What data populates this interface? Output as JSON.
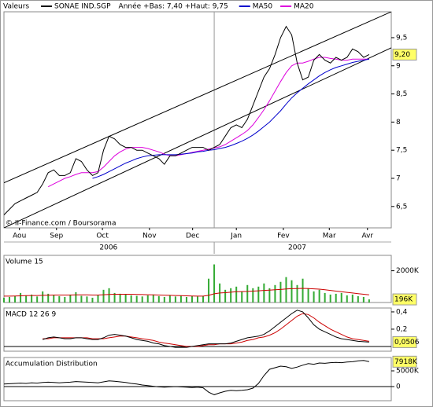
{
  "chart_data": [
    {
      "type": "line",
      "title": "Valeurs",
      "subtitle": "Année +Bas: 7,40 +Haut: 9,75",
      "source": "© II-Finance.com / Boursorama",
      "series": [
        {
          "name": "SONAE IND.SGP",
          "color": "#000000",
          "values": [
            6.35,
            6.45,
            6.55,
            6.6,
            6.65,
            6.7,
            6.75,
            6.9,
            7.1,
            7.15,
            7.05,
            7.05,
            7.1,
            7.35,
            7.3,
            7.15,
            7.05,
            7.1,
            7.5,
            7.75,
            7.7,
            7.6,
            7.55,
            7.55,
            7.5,
            7.5,
            7.45,
            7.4,
            7.35,
            7.25,
            7.4,
            7.4,
            7.45,
            7.5,
            7.55,
            7.55,
            7.55,
            7.5,
            7.55,
            7.6,
            7.75,
            7.9,
            7.95,
            7.9,
            8.05,
            8.3,
            8.55,
            8.8,
            8.95,
            9.2,
            9.5,
            9.7,
            9.55,
            9.05,
            8.75,
            8.8,
            9.1,
            9.2,
            9.1,
            9.05,
            9.15,
            9.1,
            9.15,
            9.3,
            9.25,
            9.15,
            9.2
          ]
        },
        {
          "name": "MA50",
          "color": "#0000cc",
          "values": [
            null,
            null,
            null,
            null,
            null,
            null,
            null,
            null,
            null,
            null,
            null,
            null,
            null,
            null,
            null,
            null,
            7.0,
            7.03,
            7.07,
            7.12,
            7.17,
            7.22,
            7.27,
            7.31,
            7.35,
            7.38,
            7.4,
            7.41,
            7.42,
            7.42,
            7.42,
            7.42,
            7.43,
            7.44,
            7.45,
            7.47,
            7.48,
            7.5,
            7.51,
            7.53,
            7.55,
            7.58,
            7.62,
            7.66,
            7.71,
            7.77,
            7.84,
            7.92,
            8.0,
            8.1,
            8.2,
            8.32,
            8.43,
            8.52,
            8.6,
            8.68,
            8.75,
            8.82,
            8.88,
            8.93,
            8.97,
            9.0,
            9.03,
            9.06,
            9.08,
            9.1,
            9.12
          ]
        },
        {
          "name": "MA20",
          "color": "#dd00dd",
          "values": [
            null,
            null,
            null,
            null,
            null,
            null,
            null,
            null,
            6.85,
            6.9,
            6.95,
            7.0,
            7.03,
            7.07,
            7.1,
            7.1,
            7.1,
            7.12,
            7.2,
            7.3,
            7.4,
            7.47,
            7.52,
            7.55,
            7.55,
            7.55,
            7.53,
            7.5,
            7.47,
            7.43,
            7.4,
            7.4,
            7.42,
            7.44,
            7.46,
            7.48,
            7.5,
            7.52,
            7.54,
            7.56,
            7.6,
            7.66,
            7.72,
            7.78,
            7.85,
            7.95,
            8.08,
            8.22,
            8.38,
            8.55,
            8.72,
            8.88,
            9.0,
            9.05,
            9.05,
            9.08,
            9.12,
            9.15,
            9.15,
            9.13,
            9.12,
            9.1,
            9.1,
            9.12,
            9.12,
            9.12,
            9.12
          ]
        }
      ],
      "channels": [
        [
          6.92,
          9.96
        ],
        [
          6.12,
          9.32
        ]
      ],
      "last_value": {
        "value": 9.2,
        "label": "9,20"
      },
      "xlim": [
        0,
        70
      ],
      "xticks": [
        {
          "value": 2.8,
          "label": "Aou"
        },
        {
          "value": 9.5,
          "label": "Sep"
        },
        {
          "value": 17.8,
          "label": "Oct"
        },
        {
          "value": 26.3,
          "label": "Nov"
        },
        {
          "value": 34.1,
          "label": "Dec"
        },
        {
          "value": 42,
          "label": "Jan"
        },
        {
          "value": 50.5,
          "label": "Fev"
        },
        {
          "value": 58.8,
          "label": "Mar"
        },
        {
          "value": 65.7,
          "label": "Avr"
        }
      ],
      "year_labels": [
        {
          "value": 18.9,
          "label": "2006"
        },
        {
          "value": 53,
          "label": "2007"
        }
      ],
      "year_separator": 38,
      "ylim": [
        6.12,
        9.96
      ],
      "yticks": [
        {
          "value": 6.5,
          "label": "6,5"
        },
        7,
        {
          "value": 7.5,
          "label": "7,5"
        },
        8,
        {
          "value": 8.5,
          "label": "8,5"
        },
        9,
        {
          "value": 9.5,
          "label": "9,5"
        }
      ]
    },
    {
      "type": "bar",
      "title": "Volume 15",
      "color": "#33aa33",
      "values": [
        300000,
        350000,
        400000,
        600000,
        450000,
        500000,
        380000,
        700000,
        550000,
        450000,
        400000,
        350000,
        500000,
        650000,
        420000,
        380000,
        300000,
        450000,
        800000,
        900000,
        600000,
        550000,
        500000,
        450000,
        420000,
        380000,
        450000,
        500000,
        400000,
        350000,
        450000,
        380000,
        420000,
        350000,
        400000,
        380000,
        420000,
        1500000,
        2400000,
        1200000,
        800000,
        900000,
        1000000,
        700000,
        1100000,
        900000,
        1000000,
        1200000,
        900000,
        1100000,
        1300000,
        1600000,
        1400000,
        1100000,
        1500000,
        900000,
        700000,
        800000,
        600000,
        500000,
        550000,
        600000,
        450000,
        500000,
        400000,
        350000,
        196000
      ],
      "ma_color": "#cc0000",
      "ma_values": [
        400000,
        400000,
        410000,
        420000,
        430000,
        440000,
        440000,
        450000,
        460000,
        470000,
        470000,
        470000,
        470000,
        480000,
        480000,
        480000,
        470000,
        470000,
        490000,
        510000,
        520000,
        520000,
        520000,
        520000,
        510000,
        500000,
        490000,
        480000,
        470000,
        460000,
        450000,
        440000,
        430000,
        420000,
        410000,
        400000,
        400000,
        450000,
        550000,
        600000,
        620000,
        650000,
        680000,
        690000,
        700000,
        720000,
        740000,
        760000,
        780000,
        800000,
        820000,
        850000,
        870000,
        880000,
        890000,
        880000,
        860000,
        840000,
        800000,
        760000,
        720000,
        680000,
        640000,
        600000,
        560000,
        520000,
        480000
      ],
      "last_value": {
        "value": 196000,
        "label": "196K"
      },
      "xlim": [
        0,
        70
      ],
      "ylim": [
        0,
        2970000
      ],
      "yticks": [
        {
          "value": 2000000,
          "label": "2000K"
        }
      ]
    },
    {
      "type": "line",
      "title": "MACD 12 26 9",
      "series": [
        {
          "color": "#000000",
          "values": [
            null,
            null,
            null,
            null,
            null,
            null,
            null,
            0.08,
            0.1,
            0.11,
            0.1,
            0.09,
            0.09,
            0.1,
            0.1,
            0.09,
            0.08,
            0.08,
            0.1,
            0.13,
            0.14,
            0.13,
            0.12,
            0.1,
            0.08,
            0.07,
            0.06,
            0.04,
            0.03,
            0.01,
            0.0,
            -0.01,
            -0.01,
            -0.01,
            0.0,
            0.01,
            0.02,
            0.03,
            0.03,
            0.03,
            0.03,
            0.04,
            0.06,
            0.08,
            0.1,
            0.11,
            0.12,
            0.14,
            0.18,
            0.23,
            0.28,
            0.33,
            0.38,
            0.42,
            0.4,
            0.33,
            0.25,
            0.2,
            0.17,
            0.14,
            0.11,
            0.09,
            0.08,
            0.07,
            0.06,
            0.055,
            0.0506
          ]
        },
        {
          "color": "#cc0000",
          "values": [
            null,
            null,
            null,
            null,
            null,
            null,
            null,
            0.09,
            0.09,
            0.1,
            0.1,
            0.1,
            0.1,
            0.1,
            0.1,
            0.1,
            0.09,
            0.09,
            0.09,
            0.1,
            0.11,
            0.12,
            0.12,
            0.11,
            0.1,
            0.09,
            0.08,
            0.07,
            0.05,
            0.04,
            0.03,
            0.02,
            0.01,
            0.0,
            0.0,
            0.0,
            0.01,
            0.02,
            0.02,
            0.03,
            0.03,
            0.03,
            0.04,
            0.05,
            0.07,
            0.08,
            0.1,
            0.11,
            0.13,
            0.16,
            0.2,
            0.25,
            0.3,
            0.35,
            0.38,
            0.37,
            0.33,
            0.28,
            0.24,
            0.2,
            0.17,
            0.14,
            0.11,
            0.09,
            0.08,
            0.07,
            0.06
          ]
        }
      ],
      "last_value": {
        "value": 0.0506,
        "label": "0,0506"
      },
      "xlim": [
        0,
        70
      ],
      "ylim": [
        -0.055,
        0.445
      ],
      "yticks": [
        {
          "value": 0.2,
          "label": "0,2"
        },
        {
          "value": 0.4,
          "label": "0,4"
        }
      ]
    },
    {
      "type": "line",
      "title": "Accumulation Distribution",
      "series": [
        {
          "color": "#000000",
          "values": [
            800000,
            900000,
            1000000,
            1100000,
            1000000,
            1200000,
            1100000,
            1300000,
            1400000,
            1300000,
            1200000,
            1300000,
            1400000,
            1600000,
            1500000,
            1400000,
            1300000,
            1200000,
            1500000,
            1800000,
            1700000,
            1500000,
            1300000,
            1000000,
            800000,
            500000,
            300000,
            100000,
            -100000,
            -200000,
            -100000,
            0,
            -100000,
            -200000,
            -300000,
            -200000,
            -400000,
            -1800000,
            -2600000,
            -2000000,
            -1500000,
            -1200000,
            -1300000,
            -1200000,
            -1000000,
            -500000,
            1000000,
            3500000,
            5500000,
            6000000,
            6500000,
            6300000,
            5800000,
            6200000,
            6800000,
            7300000,
            7100000,
            7500000,
            7400000,
            7600000,
            7700000,
            7600000,
            7800000,
            7900000,
            8200000,
            8300000,
            7918000
          ]
        }
      ],
      "last_value": {
        "value": 7918000,
        "label": "7918K"
      },
      "xlim": [
        0,
        70
      ],
      "ylim": [
        -4500000,
        9250000
      ],
      "yticks": [
        0,
        {
          "value": 5000000,
          "label": "5000K"
        }
      ]
    }
  ]
}
